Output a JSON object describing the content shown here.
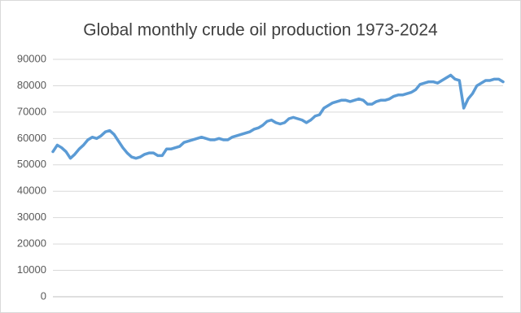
{
  "chart_data": {
    "type": "line",
    "title": "Global monthly crude oil production 1973-2024",
    "series": [
      {
        "color": "#5b9bd5",
        "values": [
          55000,
          57500,
          56500,
          55000,
          52500,
          54000,
          56000,
          57500,
          59500,
          60500,
          60000,
          61000,
          62500,
          63000,
          61500,
          59000,
          56500,
          54500,
          53000,
          52500,
          53000,
          54000,
          54500,
          54500,
          53500,
          53500,
          56000,
          56000,
          56500,
          57000,
          58500,
          59000,
          59500,
          60000,
          60500,
          60000,
          59500,
          59500,
          60000,
          59500,
          59500,
          60500,
          61000,
          61500,
          62000,
          62500,
          63500,
          64000,
          65000,
          66500,
          67000,
          66000,
          65500,
          66000,
          67500,
          68000,
          67500,
          67000,
          66000,
          67000,
          68500,
          69000,
          71500,
          72500,
          73500,
          74000,
          74500,
          74500,
          74000,
          74500,
          75000,
          74500,
          73000,
          73000,
          74000,
          74500,
          74500,
          75000,
          76000,
          76500,
          76500,
          77000,
          77500,
          78500,
          80500,
          81000,
          81500,
          81500,
          81000,
          82000,
          83000,
          84000,
          82500,
          82000,
          71500,
          75000,
          77000,
          80000,
          81000,
          82000,
          82000,
          82500,
          82500,
          81500
        ]
      }
    ],
    "ylim": [
      0,
      90000
    ],
    "yticks": [
      0,
      10000,
      20000,
      30000,
      40000,
      50000,
      60000,
      70000,
      80000,
      90000
    ],
    "grid": true
  }
}
